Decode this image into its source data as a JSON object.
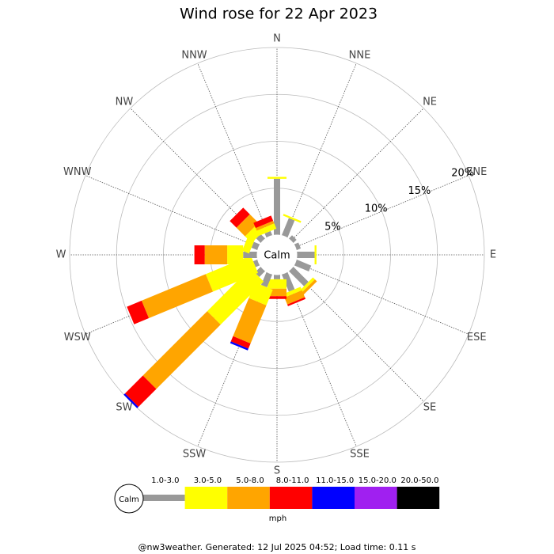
{
  "chart_data": {
    "type": "windrose",
    "title": "Wind rose for 22 Apr 2023",
    "categories": [
      "N",
      "NNE",
      "NE",
      "ENE",
      "E",
      "ESE",
      "SE",
      "SSE",
      "S",
      "SSW",
      "SW",
      "WSW",
      "W",
      "WNW",
      "NW",
      "NNW"
    ],
    "calm_label": "Calm",
    "units": "mph",
    "rlim": [
      0,
      20
    ],
    "rticks": [
      {
        "value": 5,
        "label": "5%"
      },
      {
        "value": 10,
        "label": "10%"
      },
      {
        "value": 15,
        "label": "15%"
      },
      {
        "value": 20,
        "label": "20%"
      }
    ],
    "series": [
      {
        "name": "1.0-3.0",
        "color": "#999999",
        "values": [
          6.0,
          2.0,
          0.5,
          0.5,
          1.9,
          1.7,
          2.3,
          2.0,
          0.5,
          1.5,
          0.9,
          0.5,
          1.5,
          0.7,
          0.7,
          0.5
        ]
      },
      {
        "name": "3.0-5.0",
        "color": "#ffff00",
        "values": [
          0.2,
          0.2,
          0,
          0,
          0.2,
          0,
          0.3,
          0.4,
          1.0,
          1.8,
          6.5,
          5.2,
          1.7,
          0.8,
          1.0,
          0.6
        ]
      },
      {
        "name": "5.0-8.0",
        "color": "#ffa500",
        "values": [
          0,
          0,
          0,
          0,
          0,
          0,
          0.3,
          0.8,
          0.8,
          4.4,
          9.7,
          7.4,
          2.4,
          0,
          1.3,
          0.3
        ]
      },
      {
        "name": "8.0-11.0",
        "color": "#ff0000",
        "values": [
          0,
          0,
          0,
          0,
          0,
          0,
          0,
          0.2,
          0.3,
          0.6,
          2.7,
          1.7,
          1.1,
          0,
          1.0,
          0.6
        ]
      },
      {
        "name": "11.0-15.0",
        "color": "#0000ff",
        "values": [
          0,
          0,
          0,
          0,
          0,
          0,
          0,
          0,
          0,
          0.2,
          0.2,
          0,
          0,
          0,
          0,
          0
        ]
      },
      {
        "name": "15.0-20.0",
        "color": "#a020f0",
        "values": [
          0,
          0,
          0,
          0,
          0,
          0,
          0,
          0,
          0,
          0,
          0,
          0,
          0,
          0,
          0,
          0
        ]
      },
      {
        "name": "20.0-50.0",
        "color": "#000000",
        "values": [
          0,
          0,
          0,
          0,
          0,
          0,
          0,
          0,
          0,
          0,
          0,
          0,
          0,
          0,
          0,
          0
        ]
      }
    ],
    "footer": "@nw3weather.  Generated: 12 Jul 2025 04:52; Load time: 0.11 s"
  }
}
